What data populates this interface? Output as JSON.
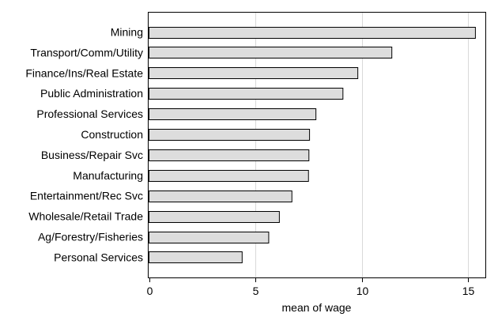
{
  "chart_data": {
    "type": "bar",
    "orientation": "horizontal",
    "categories": [
      "Mining",
      "Transport/Comm/Utility",
      "Finance/Ins/Real Estate",
      "Public Administration",
      "Professional Services",
      "Construction",
      "Business/Repair Svc",
      "Manufacturing",
      "Entertainment/Rec Svc",
      "Wholesale/Retail Trade",
      "Ag/Forestry/Fisheries",
      "Personal Services"
    ],
    "values": [
      15.35,
      11.42,
      9.82,
      9.12,
      7.85,
      7.55,
      7.52,
      7.5,
      6.72,
      6.13,
      5.63,
      4.38
    ],
    "xlabel": "mean of wage",
    "ylabel": "",
    "xlim": [
      0,
      15.9
    ],
    "xticks": [
      0,
      5,
      10,
      15
    ],
    "grid": true,
    "bar_color": "#dddddd",
    "bar_edge_color": "#000000",
    "grid_color": "#d9d9d9"
  }
}
